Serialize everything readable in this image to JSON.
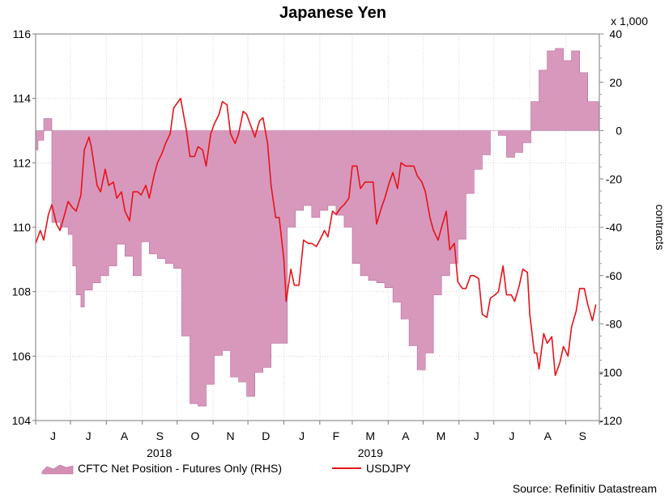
{
  "chart_data": {
    "type": "area",
    "title": "Japanese Yen",
    "left_axis": {
      "ylim": [
        104,
        116
      ],
      "ticks": [
        "104",
        "106",
        "108",
        "110",
        "112",
        "114",
        "116"
      ]
    },
    "right_axis": {
      "ylim": [
        -120,
        40
      ],
      "ticks": [
        "-120",
        "-100",
        "-80",
        "-60",
        "-40",
        "-20",
        "0",
        "20",
        "40"
      ],
      "unit": "x 1,000",
      "label": "contracts"
    },
    "x_months": [
      "J",
      "J",
      "A",
      "S",
      "O",
      "N",
      "D",
      "J",
      "F",
      "M",
      "A",
      "M",
      "J",
      "J",
      "A",
      "S"
    ],
    "year_labels": [
      "2018",
      "2019"
    ],
    "grid": true,
    "legend_position": "bottom-left",
    "series": [
      {
        "name": "CFTC Net Position - Futures Only (RHS)",
        "type": "area",
        "axis": "right",
        "color": "#d48fb6",
        "points": [
          [
            "2018-06-01",
            -8
          ],
          [
            "2018-06-03",
            -4
          ],
          [
            "2018-06-08",
            5
          ],
          [
            "2018-06-13",
            5
          ],
          [
            "2018-06-15",
            -38
          ],
          [
            "2018-06-22",
            -40
          ],
          [
            "2018-06-29",
            -43
          ],
          [
            "2018-07-03",
            -56
          ],
          [
            "2018-07-06",
            -68
          ],
          [
            "2018-07-10",
            -73
          ],
          [
            "2018-07-13",
            -66
          ],
          [
            "2018-07-17",
            -66
          ],
          [
            "2018-07-20",
            -63
          ],
          [
            "2018-07-27",
            -60
          ],
          [
            "2018-08-03",
            -56
          ],
          [
            "2018-08-10",
            -47
          ],
          [
            "2018-08-17",
            -52
          ],
          [
            "2018-08-24",
            -60
          ],
          [
            "2018-08-31",
            -46
          ],
          [
            "2018-09-07",
            -51
          ],
          [
            "2018-09-14",
            -53
          ],
          [
            "2018-09-21",
            -55
          ],
          [
            "2018-09-28",
            -57
          ],
          [
            "2018-10-05",
            -85
          ],
          [
            "2018-10-12",
            -113
          ],
          [
            "2018-10-19",
            -114
          ],
          [
            "2018-10-26",
            -105
          ],
          [
            "2018-11-02",
            -93
          ],
          [
            "2018-11-09",
            -91
          ],
          [
            "2018-11-16",
            -102
          ],
          [
            "2018-11-23",
            -104
          ],
          [
            "2018-11-30",
            -110
          ],
          [
            "2018-12-07",
            -100
          ],
          [
            "2018-12-14",
            -98
          ],
          [
            "2018-12-21",
            -88
          ],
          [
            "2019-01-04",
            -40
          ],
          [
            "2019-01-11",
            -33
          ],
          [
            "2019-01-18",
            -31
          ],
          [
            "2019-01-25",
            -36
          ],
          [
            "2019-02-01",
            -33
          ],
          [
            "2019-02-08",
            -31
          ],
          [
            "2019-02-15",
            -35
          ],
          [
            "2019-02-22",
            -40
          ],
          [
            "2019-03-01",
            -55
          ],
          [
            "2019-03-08",
            -60
          ],
          [
            "2019-03-15",
            -62
          ],
          [
            "2019-03-22",
            -63
          ],
          [
            "2019-03-29",
            -65
          ],
          [
            "2019-04-05",
            -71
          ],
          [
            "2019-04-12",
            -78
          ],
          [
            "2019-04-19",
            -89
          ],
          [
            "2019-04-26",
            -99
          ],
          [
            "2019-05-03",
            -92
          ],
          [
            "2019-05-10",
            -68
          ],
          [
            "2019-05-17",
            -60
          ],
          [
            "2019-05-24",
            -55
          ],
          [
            "2019-05-31",
            -45
          ],
          [
            "2019-06-07",
            -26
          ],
          [
            "2019-06-14",
            -16
          ],
          [
            "2019-06-21",
            -10
          ],
          [
            "2019-06-28",
            0
          ],
          [
            "2019-07-05",
            -2
          ],
          [
            "2019-07-12",
            -11
          ],
          [
            "2019-07-19",
            -9
          ],
          [
            "2019-07-26",
            -5
          ],
          [
            "2019-08-02",
            12
          ],
          [
            "2019-08-09",
            25
          ],
          [
            "2019-08-16",
            33
          ],
          [
            "2019-08-23",
            34
          ],
          [
            "2019-08-30",
            29
          ],
          [
            "2019-09-06",
            33
          ],
          [
            "2019-09-13",
            24
          ],
          [
            "2019-09-20",
            12
          ]
        ]
      },
      {
        "name": "USDJPY",
        "type": "line",
        "axis": "left",
        "color": "#e8121a",
        "points": [
          [
            "2018-06-01",
            109.5
          ],
          [
            "2018-06-05",
            109.9
          ],
          [
            "2018-06-08",
            109.6
          ],
          [
            "2018-06-12",
            110.4
          ],
          [
            "2018-06-15",
            110.7
          ],
          [
            "2018-06-19",
            110.1
          ],
          [
            "2018-06-22",
            109.9
          ],
          [
            "2018-06-26",
            110.4
          ],
          [
            "2018-06-29",
            110.8
          ],
          [
            "2018-07-03",
            110.6
          ],
          [
            "2018-07-06",
            110.5
          ],
          [
            "2018-07-10",
            111.0
          ],
          [
            "2018-07-13",
            112.4
          ],
          [
            "2018-07-17",
            112.8
          ],
          [
            "2018-07-19",
            112.5
          ],
          [
            "2018-07-24",
            111.3
          ],
          [
            "2018-07-27",
            111.1
          ],
          [
            "2018-07-31",
            111.8
          ],
          [
            "2018-08-03",
            111.3
          ],
          [
            "2018-08-07",
            111.4
          ],
          [
            "2018-08-10",
            110.9
          ],
          [
            "2018-08-14",
            111.1
          ],
          [
            "2018-08-17",
            110.5
          ],
          [
            "2018-08-21",
            110.2
          ],
          [
            "2018-08-24",
            111.1
          ],
          [
            "2018-08-28",
            111.1
          ],
          [
            "2018-08-31",
            111.0
          ],
          [
            "2018-09-04",
            111.3
          ],
          [
            "2018-09-07",
            110.9
          ],
          [
            "2018-09-11",
            111.6
          ],
          [
            "2018-09-14",
            112.0
          ],
          [
            "2018-09-18",
            112.3
          ],
          [
            "2018-09-21",
            112.6
          ],
          [
            "2018-09-25",
            112.9
          ],
          [
            "2018-09-28",
            113.7
          ],
          [
            "2018-10-02",
            113.9
          ],
          [
            "2018-10-04",
            114.0
          ],
          [
            "2018-10-09",
            113.0
          ],
          [
            "2018-10-12",
            112.2
          ],
          [
            "2018-10-16",
            112.2
          ],
          [
            "2018-10-19",
            112.5
          ],
          [
            "2018-10-23",
            112.4
          ],
          [
            "2018-10-26",
            111.9
          ],
          [
            "2018-10-30",
            112.9
          ],
          [
            "2018-11-02",
            113.2
          ],
          [
            "2018-11-06",
            113.5
          ],
          [
            "2018-11-09",
            113.9
          ],
          [
            "2018-11-13",
            113.8
          ],
          [
            "2018-11-16",
            112.9
          ],
          [
            "2018-11-20",
            112.6
          ],
          [
            "2018-11-23",
            112.9
          ],
          [
            "2018-11-27",
            113.6
          ],
          [
            "2018-11-30",
            113.5
          ],
          [
            "2018-12-04",
            113.1
          ],
          [
            "2018-12-07",
            112.8
          ],
          [
            "2018-12-11",
            113.3
          ],
          [
            "2018-12-14",
            113.4
          ],
          [
            "2018-12-18",
            112.6
          ],
          [
            "2018-12-21",
            111.3
          ],
          [
            "2018-12-25",
            110.3
          ],
          [
            "2018-12-28",
            110.3
          ],
          [
            "2019-01-01",
            109.0
          ],
          [
            "2019-01-03",
            107.7
          ],
          [
            "2019-01-07",
            108.7
          ],
          [
            "2019-01-10",
            108.2
          ],
          [
            "2019-01-14",
            108.2
          ],
          [
            "2019-01-18",
            109.6
          ],
          [
            "2019-01-22",
            109.5
          ],
          [
            "2019-01-25",
            109.5
          ],
          [
            "2019-01-29",
            109.4
          ],
          [
            "2019-02-01",
            109.6
          ],
          [
            "2019-02-05",
            109.9
          ],
          [
            "2019-02-08",
            109.7
          ],
          [
            "2019-02-12",
            110.5
          ],
          [
            "2019-02-15",
            110.4
          ],
          [
            "2019-02-19",
            110.6
          ],
          [
            "2019-02-22",
            110.7
          ],
          [
            "2019-02-26",
            110.9
          ],
          [
            "2019-03-01",
            111.9
          ],
          [
            "2019-03-05",
            111.9
          ],
          [
            "2019-03-08",
            111.2
          ],
          [
            "2019-03-12",
            111.4
          ],
          [
            "2019-03-15",
            111.4
          ],
          [
            "2019-03-19",
            111.4
          ],
          [
            "2019-03-22",
            110.1
          ],
          [
            "2019-03-26",
            110.6
          ],
          [
            "2019-03-29",
            110.9
          ],
          [
            "2019-04-02",
            111.4
          ],
          [
            "2019-04-05",
            111.7
          ],
          [
            "2019-04-09",
            111.2
          ],
          [
            "2019-04-12",
            112.0
          ],
          [
            "2019-04-16",
            111.9
          ],
          [
            "2019-04-19",
            111.9
          ],
          [
            "2019-04-23",
            111.9
          ],
          [
            "2019-04-26",
            111.6
          ],
          [
            "2019-04-30",
            111.4
          ],
          [
            "2019-05-03",
            111.1
          ],
          [
            "2019-05-07",
            110.3
          ],
          [
            "2019-05-10",
            109.9
          ],
          [
            "2019-05-14",
            109.6
          ],
          [
            "2019-05-17",
            110.0
          ],
          [
            "2019-05-21",
            110.5
          ],
          [
            "2019-05-24",
            109.3
          ],
          [
            "2019-05-28",
            109.5
          ],
          [
            "2019-05-31",
            108.3
          ],
          [
            "2019-06-04",
            108.1
          ],
          [
            "2019-06-07",
            108.1
          ],
          [
            "2019-06-11",
            108.5
          ],
          [
            "2019-06-14",
            108.5
          ],
          [
            "2019-06-18",
            108.4
          ],
          [
            "2019-06-21",
            107.3
          ],
          [
            "2019-06-25",
            107.2
          ],
          [
            "2019-06-28",
            107.8
          ],
          [
            "2019-07-02",
            107.9
          ],
          [
            "2019-07-05",
            108.0
          ],
          [
            "2019-07-09",
            108.8
          ],
          [
            "2019-07-12",
            107.9
          ],
          [
            "2019-07-16",
            107.9
          ],
          [
            "2019-07-19",
            107.7
          ],
          [
            "2019-07-23",
            108.2
          ],
          [
            "2019-07-26",
            108.7
          ],
          [
            "2019-07-30",
            108.6
          ],
          [
            "2019-08-01",
            107.3
          ],
          [
            "2019-08-05",
            106.1
          ],
          [
            "2019-08-07",
            106.1
          ],
          [
            "2019-08-09",
            105.6
          ],
          [
            "2019-08-13",
            106.7
          ],
          [
            "2019-08-16",
            106.4
          ],
          [
            "2019-08-20",
            106.6
          ],
          [
            "2019-08-23",
            105.4
          ],
          [
            "2019-08-27",
            105.8
          ],
          [
            "2019-08-30",
            106.3
          ],
          [
            "2019-09-03",
            106.0
          ],
          [
            "2019-09-06",
            106.9
          ],
          [
            "2019-09-10",
            107.4
          ],
          [
            "2019-09-13",
            108.1
          ],
          [
            "2019-09-17",
            108.1
          ],
          [
            "2019-09-20",
            107.6
          ],
          [
            "2019-09-24",
            107.1
          ],
          [
            "2019-09-27",
            107.6
          ]
        ]
      }
    ]
  },
  "header": {
    "title": "Japanese Yen"
  },
  "axis_right": {
    "unit": "x 1,000",
    "label": "contracts"
  },
  "legend": {
    "area_label": "CFTC Net Position - Futures Only (RHS)",
    "line_label": "USDJPY"
  },
  "source": "Source: Refinitiv Datastream"
}
